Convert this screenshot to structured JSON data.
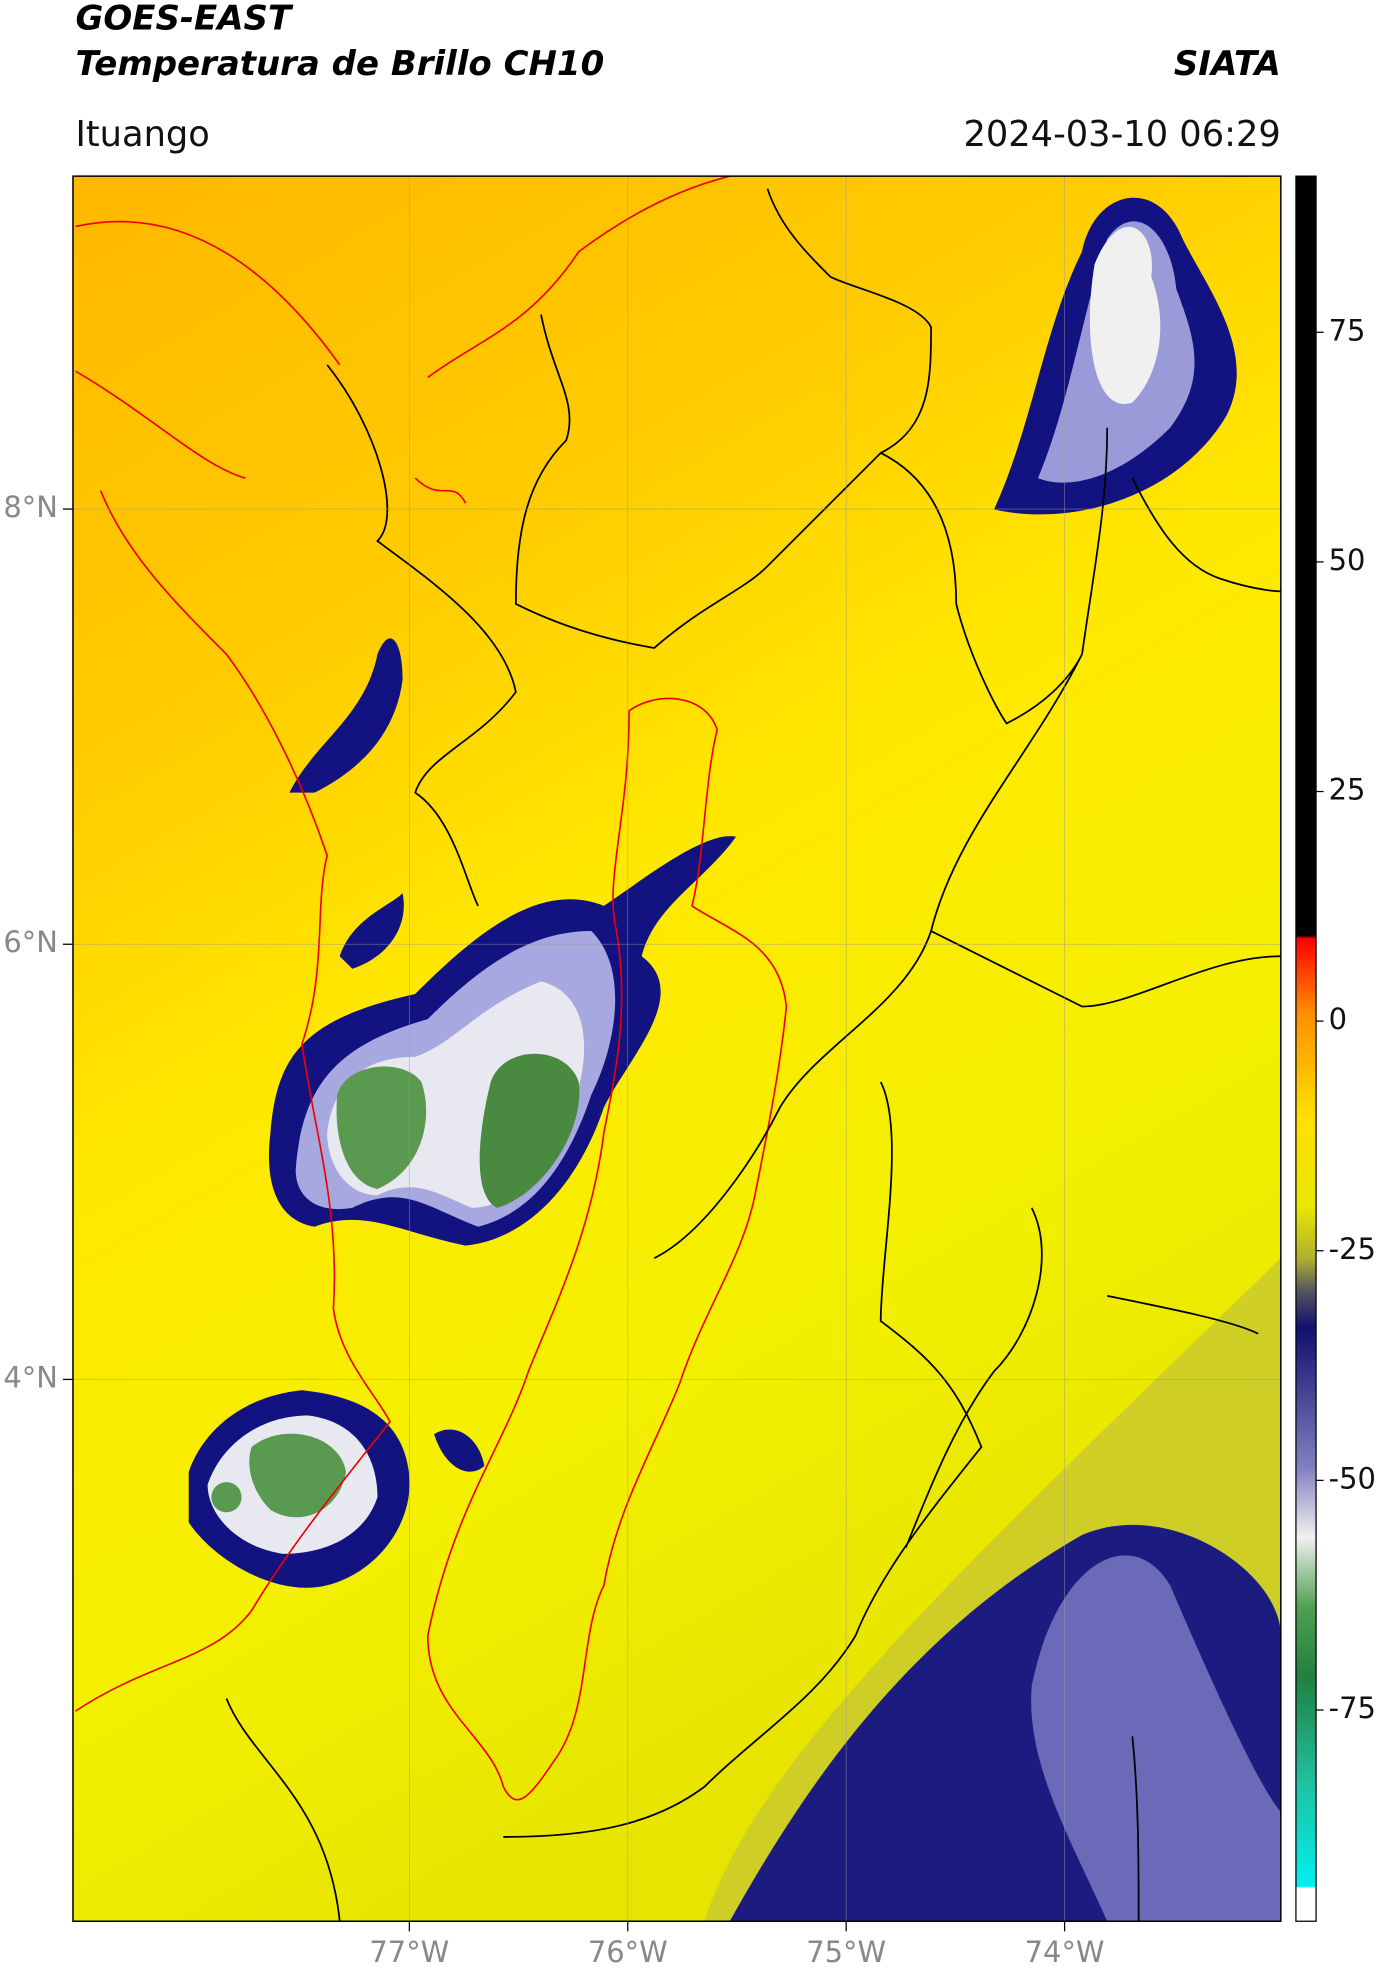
{
  "title": "GOES-EAST",
  "subtitle": "Temperatura de Brillo CH10",
  "source": "SIATA",
  "location": "Ituango",
  "timestamp": "2024-03-10 06:29",
  "map": {
    "xlim": [
      -78.54,
      -73.01
    ],
    "ylim": [
      1.51,
      9.53
    ],
    "xticks": [
      {
        "value": -77,
        "label": "77°W"
      },
      {
        "value": -76,
        "label": "76°W"
      },
      {
        "value": -75,
        "label": "75°W"
      },
      {
        "value": -74,
        "label": "74°W"
      }
    ],
    "yticks": [
      {
        "value": 8,
        "label": "8°N"
      },
      {
        "value": 6,
        "label": "6°N"
      },
      {
        "value": 4,
        "label": "4°N"
      }
    ],
    "grid": true
  },
  "colorbar": {
    "clim": [
      -98,
      92
    ],
    "ticks": [
      75,
      50,
      25,
      0,
      -25,
      -50,
      -75
    ]
  }
}
